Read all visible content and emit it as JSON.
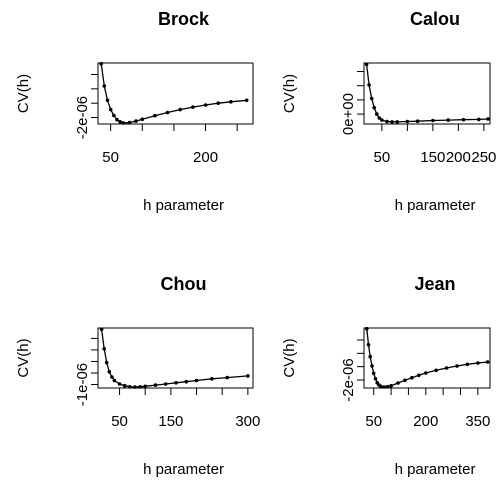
{
  "chart_data": [
    {
      "type": "scatter",
      "title": "Brock",
      "xlabel": "h parameter",
      "ylabel": "CV(h)",
      "xlim": [
        30,
        275
      ],
      "ylim": [
        -2.9e-06,
        5.6e-06
      ],
      "x_ticks": [
        50,
        100,
        150,
        200,
        250
      ],
      "x_tick_labels": [
        "50",
        "",
        "",
        "200",
        ""
      ],
      "y_ticks": [
        -2e-06,
        0,
        2e-06,
        4e-06
      ],
      "y_tick_labels": [
        "-2e-06",
        "",
        "",
        ""
      ],
      "x": [
        35,
        40,
        45,
        50,
        55,
        60,
        65,
        70,
        80,
        90,
        100,
        120,
        140,
        160,
        180,
        200,
        220,
        240,
        265
      ],
      "y": [
        5.5e-06,
        2.4e-06,
        4e-07,
        -9e-07,
        -1.7e-06,
        -2.3e-06,
        -2.6e-06,
        -2.75e-06,
        -2.7e-06,
        -2.5e-06,
        -2.25e-06,
        -1.75e-06,
        -1.3e-06,
        -9e-07,
        -5.5e-07,
        -2.5e-07,
        0.0,
        2e-07,
        4e-07
      ]
    },
    {
      "type": "scatter",
      "title": "Calou",
      "xlabel": "h parameter",
      "ylabel": "CV(h)",
      "xlim": [
        15,
        262
      ],
      "ylim": [
        -1.4e-06,
        7.2e-06
      ],
      "x_ticks": [
        50,
        100,
        150,
        200,
        250
      ],
      "x_tick_labels": [
        "50",
        "",
        "150",
        "200",
        "250"
      ],
      "y_ticks": [
        0,
        2e-06,
        4e-06,
        6e-06
      ],
      "y_tick_labels": [
        "0e+00",
        "",
        "",
        ""
      ],
      "x": [
        20,
        25,
        30,
        35,
        40,
        45,
        50,
        60,
        70,
        80,
        100,
        120,
        150,
        180,
        210,
        240,
        258
      ],
      "y": [
        7e-06,
        4.1e-06,
        2.2e-06,
        9e-07,
        0.0,
        -5.5e-07,
        -8.5e-07,
        -1.05e-06,
        -1.1e-06,
        -1.1e-06,
        -1.05e-06,
        -1e-06,
        -9e-07,
        -8.5e-07,
        -8e-07,
        -7.5e-07,
        -7e-07
      ]
    },
    {
      "type": "scatter",
      "title": "Chou",
      "xlabel": "h parameter",
      "ylabel": "CV(h)",
      "xlim": [
        8,
        310
      ],
      "ylim": [
        -1.3e-06,
        3.9e-06
      ],
      "x_ticks": [
        50,
        100,
        150,
        200,
        250,
        300
      ],
      "x_tick_labels": [
        "50",
        "",
        "150",
        "",
        "",
        "300"
      ],
      "y_ticks": [
        -1e-06,
        0,
        1e-06,
        2e-06,
        3e-06
      ],
      "y_tick_labels": [
        "-1e-06",
        "",
        "",
        "",
        ""
      ],
      "x": [
        15,
        20,
        25,
        30,
        35,
        40,
        50,
        60,
        70,
        80,
        90,
        100,
        120,
        140,
        160,
        180,
        200,
        230,
        260,
        300
      ],
      "y": [
        3.8e-06,
        2.1e-06,
        9e-07,
        1e-07,
        -3.5e-07,
        -6.5e-07,
        -9.5e-07,
        -1.1e-06,
        -1.2e-06,
        -1.22e-06,
        -1.2e-06,
        -1.15e-06,
        -1.05e-06,
        -9.5e-07,
        -8.5e-07,
        -7.5e-07,
        -6.5e-07,
        -5e-07,
        -4e-07,
        -2.5e-07
      ]
    },
    {
      "type": "scatter",
      "title": "Jean",
      "xlabel": "h parameter",
      "ylabel": "CV(h)",
      "xlim": [
        22,
        385
      ],
      "ylim": [
        -3.2e-06,
        5.8e-06
      ],
      "x_ticks": [
        50,
        100,
        150,
        200,
        250,
        300,
        350
      ],
      "x_tick_labels": [
        "50",
        "",
        "",
        "200",
        "",
        "",
        "350"
      ],
      "y_ticks": [
        -2e-06,
        0,
        2e-06,
        4e-06
      ],
      "y_tick_labels": [
        "-2e-06",
        "",
        "",
        ""
      ],
      "x": [
        30,
        35,
        40,
        45,
        50,
        55,
        60,
        65,
        70,
        80,
        90,
        100,
        120,
        140,
        160,
        180,
        200,
        230,
        260,
        290,
        320,
        350,
        378
      ],
      "y": [
        5.7e-06,
        3.3e-06,
        1.5e-06,
        1e-07,
        -1e-06,
        -1.8e-06,
        -2.4e-06,
        -2.75e-06,
        -2.95e-06,
        -3.05e-06,
        -3e-06,
        -2.85e-06,
        -2.45e-06,
        -2.05e-06,
        -1.65e-06,
        -1.3e-06,
        -9.5e-07,
        -5.5e-07,
        -2e-07,
        1e-07,
        3.5e-07,
        5.5e-07,
        7e-07
      ]
    }
  ]
}
